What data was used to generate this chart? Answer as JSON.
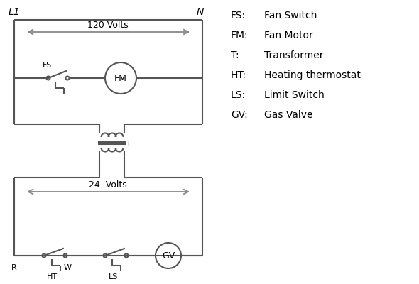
{
  "bg_color": "#ffffff",
  "line_color": "#555555",
  "arrow_color": "#888888",
  "text_color": "#000000",
  "legend_items": [
    [
      "FS:",
      "Fan Switch"
    ],
    [
      "FM:",
      "Fan Motor"
    ],
    [
      "T:",
      "Transformer"
    ],
    [
      "HT:",
      "Heating thermostat"
    ],
    [
      "LS:",
      "Limit Switch"
    ],
    [
      "GV:",
      "Gas Valve"
    ]
  ],
  "L1_label": "L1",
  "N_label": "N",
  "volts120_label": "120 Volts",
  "volts24_label": "24  Volts",
  "T_label": "T",
  "R_label": "R",
  "W_label": "W",
  "HT_label": "HT",
  "LS_label": "LS",
  "FS_label": "FS",
  "FM_label": "FM",
  "GV_label": "GV"
}
